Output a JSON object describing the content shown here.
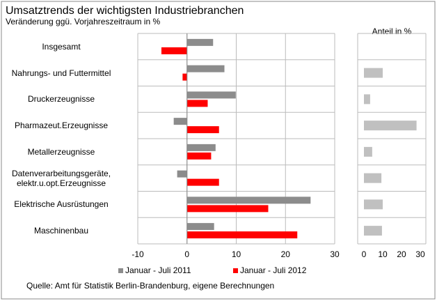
{
  "chart_data": [
    {
      "type": "hbar",
      "title": "Umsatztrends der wichtigsten Industriebranchen",
      "subtitle": "Veränderung ggü. Vorjahreszeitraum  in %",
      "categories": [
        "Insgesamt",
        "Nahrungs- und Futtermittel",
        "Druckerzeugnisse",
        "Pharmazeut.Erzeugnisse",
        "Metallerzeugnisse",
        "Datenverarbeitungsgeräte,\nelektr.u.opt.Erzeugnisse",
        "Elektrische Ausrüstungen",
        "Maschinenbau"
      ],
      "series": [
        {
          "name": "Januar - Juli 2011",
          "color": "#8c8c8c",
          "values": [
            5.3,
            7.6,
            9.9,
            -2.7,
            5.8,
            -2.0,
            25.1,
            5.5
          ]
        },
        {
          "name": "Januar - Juli 2012",
          "color": "#ff0000",
          "values": [
            -5.2,
            -0.9,
            4.2,
            6.5,
            4.9,
            6.5,
            16.5,
            22.4
          ]
        }
      ],
      "xlim": [
        -10,
        30
      ],
      "xticks": [
        -10,
        0,
        10,
        20,
        30
      ],
      "grid": true
    },
    {
      "type": "hbar",
      "title": "Anteil in %",
      "series": [
        {
          "color": "#c0c0c0",
          "values": [
            null,
            10,
            3.3,
            28,
            4.4,
            9.3,
            10,
            9.6
          ]
        }
      ],
      "xlim": [
        0,
        30
      ],
      "xticks": [
        0,
        10,
        20,
        30
      ],
      "grid": true
    }
  ],
  "source": "Quelle: Amt für Statistik Berlin-Brandenburg,  eigene Berechnungen"
}
